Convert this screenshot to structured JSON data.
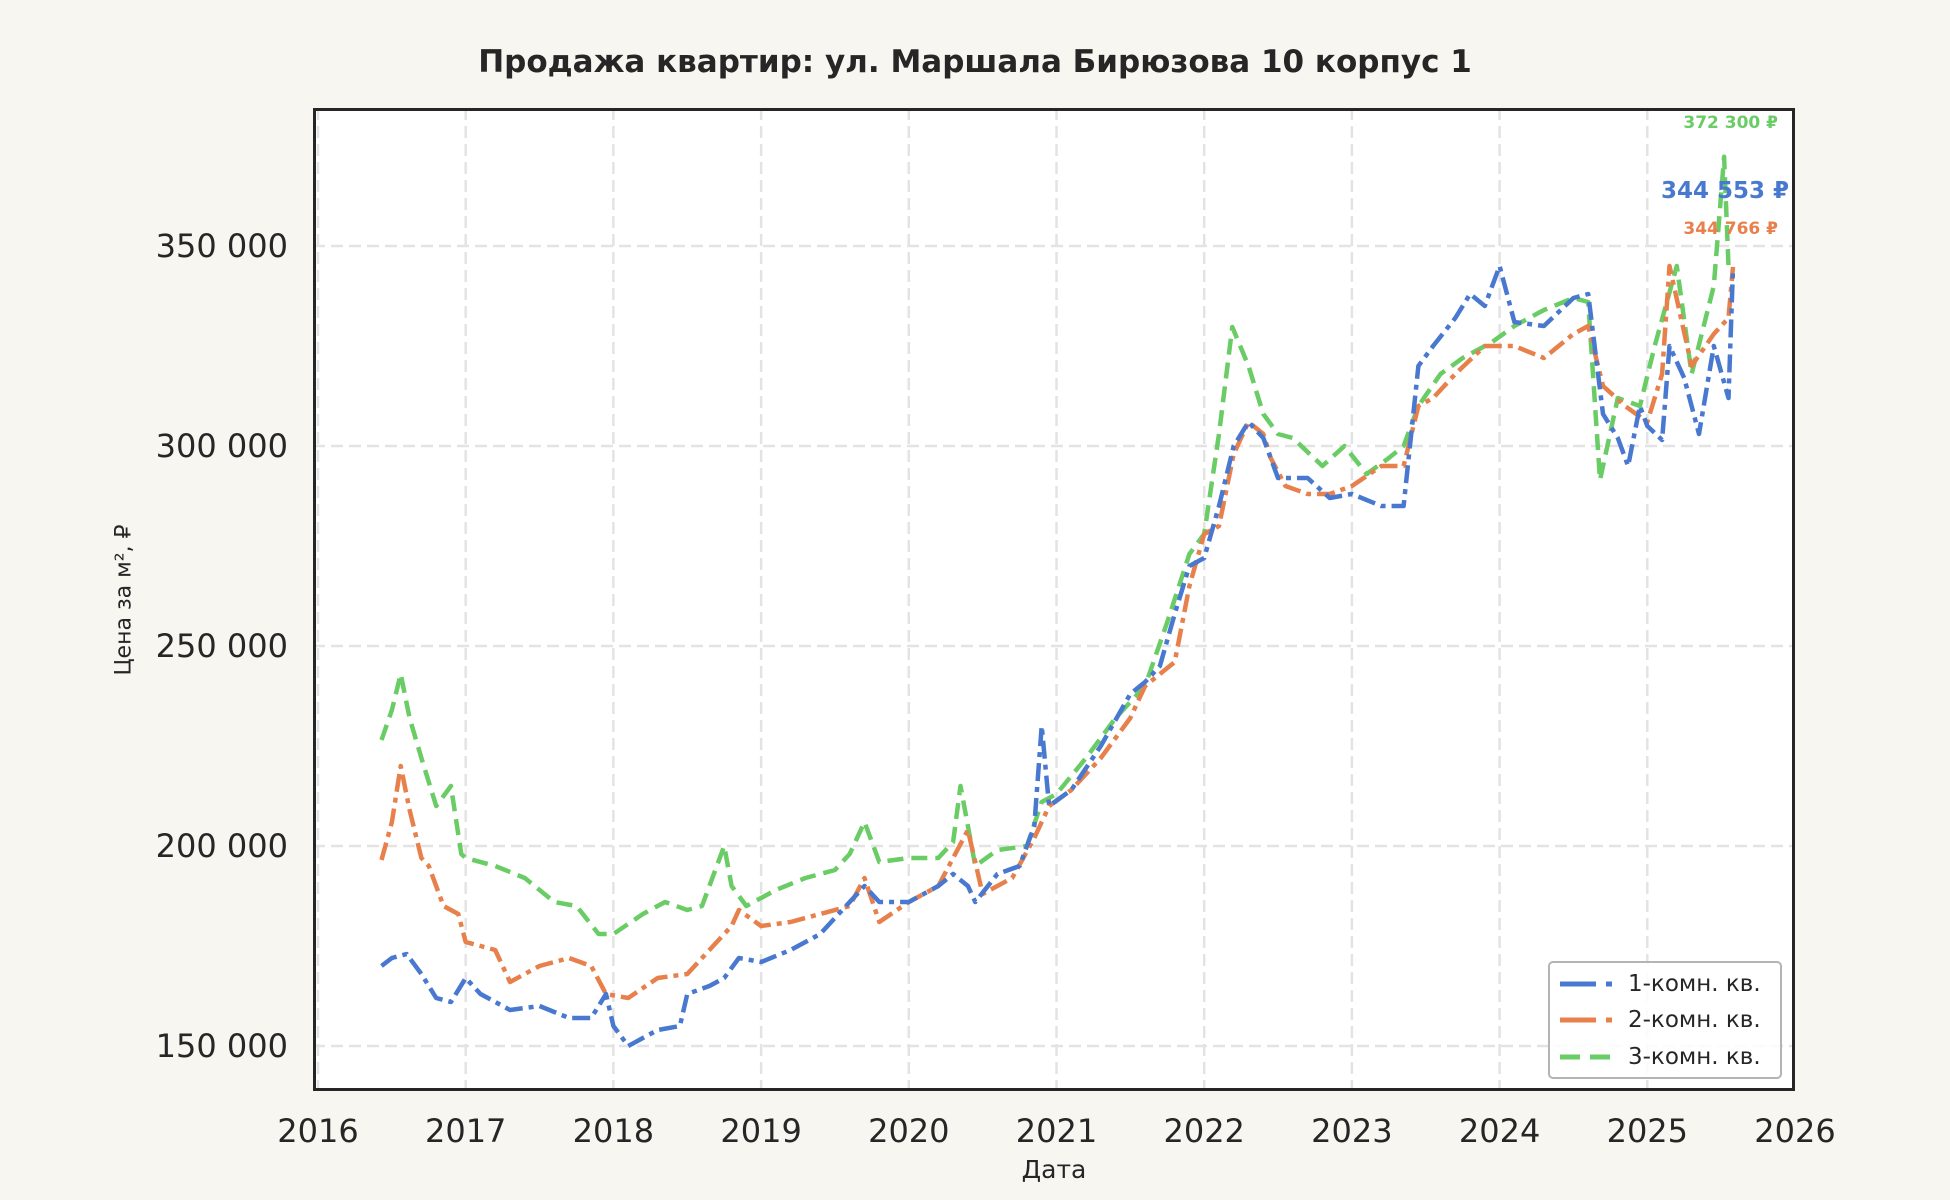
{
  "title": "Продажа квартир: ул. Маршала Бирюзова 10 корпус 1",
  "axes": {
    "xlabel": "Дата",
    "ylabel": "Цена за м², ₽",
    "xticks": [
      "2016",
      "2017",
      "2018",
      "2019",
      "2020",
      "2021",
      "2022",
      "2023",
      "2024",
      "2025",
      "2026"
    ],
    "yticks": [
      "150 000",
      "200 000",
      "250 000",
      "300 000",
      "350 000"
    ]
  },
  "legend": {
    "items": [
      {
        "label": "1-комн. кв.",
        "color": "#4878cf",
        "style": "dashdot"
      },
      {
        "label": "2-комн. кв.",
        "color": "#e8804c",
        "style": "dashdot"
      },
      {
        "label": "3-комн. кв.",
        "color": "#6acc65",
        "style": "dashed"
      }
    ]
  },
  "annotations": {
    "green": {
      "text": "372 300 ₽",
      "color": "#6acc65"
    },
    "blue": {
      "text": "344 553 ₽",
      "color": "#4878cf"
    },
    "orange": {
      "text": "344 766 ₽",
      "color": "#e8804c"
    }
  },
  "chart_data": {
    "type": "line",
    "title": "Продажа квартир: ул. Маршала Бирюзова 10 корпус 1",
    "xlabel": "Дата",
    "ylabel": "Цена за м², ₽",
    "xlim": [
      2016.0,
      2026.0
    ],
    "ylim": [
      138750,
      384500
    ],
    "grid": true,
    "legend_position": "lower right",
    "series": [
      {
        "name": "1-комн. кв.",
        "color": "#4878cf",
        "linestyle": "dashdot",
        "x": [
          2016.43,
          2016.5,
          2016.6,
          2016.7,
          2016.8,
          2016.9,
          2017.0,
          2017.1,
          2017.3,
          2017.5,
          2017.7,
          2017.85,
          2017.95,
          2018.0,
          2018.1,
          2018.2,
          2018.3,
          2018.45,
          2018.5,
          2018.65,
          2018.75,
          2018.85,
          2019.0,
          2019.2,
          2019.4,
          2019.5,
          2019.7,
          2019.8,
          2020.0,
          2020.2,
          2020.3,
          2020.4,
          2020.45,
          2020.6,
          2020.75,
          2020.85,
          2020.9,
          2020.95,
          2021.1,
          2021.3,
          2021.5,
          2021.6,
          2021.7,
          2021.8,
          2021.9,
          2022.0,
          2022.1,
          2022.2,
          2022.3,
          2022.4,
          2022.5,
          2022.7,
          2022.85,
          2023.0,
          2023.2,
          2023.35,
          2023.45,
          2023.55,
          2023.7,
          2023.8,
          2023.9,
          2024.0,
          2024.1,
          2024.3,
          2024.5,
          2024.6,
          2024.7,
          2024.8,
          2024.87,
          2024.95,
          2025.0,
          2025.1,
          2025.15,
          2025.25,
          2025.35,
          2025.45,
          2025.55,
          2025.58
        ],
        "values": [
          170000,
          172000,
          173000,
          168000,
          162000,
          161000,
          167000,
          163000,
          159000,
          160000,
          157000,
          157000,
          163000,
          155000,
          150000,
          152000,
          154000,
          155000,
          163000,
          165000,
          167000,
          172000,
          171000,
          174000,
          178000,
          182000,
          190000,
          186000,
          186000,
          190000,
          193000,
          190000,
          186000,
          193000,
          195000,
          205000,
          230000,
          210000,
          214000,
          225000,
          238000,
          241000,
          245000,
          258000,
          270000,
          272000,
          285000,
          300000,
          306000,
          302000,
          292000,
          292000,
          287000,
          288000,
          285000,
          285000,
          320000,
          325000,
          332000,
          338000,
          335000,
          345000,
          331000,
          330000,
          337000,
          338000,
          308000,
          302000,
          295000,
          310000,
          305000,
          301500,
          325000,
          317000,
          303000,
          325000,
          312000,
          344553
        ]
      },
      {
        "name": "2-комн. кв.",
        "color": "#e8804c",
        "linestyle": "dashdot",
        "x": [
          2016.43,
          2016.5,
          2016.56,
          2016.62,
          2016.7,
          2016.75,
          2016.85,
          2016.95,
          2017.0,
          2017.1,
          2017.2,
          2017.3,
          2017.5,
          2017.7,
          2017.85,
          2017.95,
          2018.1,
          2018.3,
          2018.5,
          2018.65,
          2018.8,
          2018.85,
          2019.0,
          2019.2,
          2019.4,
          2019.6,
          2019.7,
          2019.8,
          2020.0,
          2020.2,
          2020.3,
          2020.4,
          2020.5,
          2020.7,
          2020.85,
          2020.95,
          2021.1,
          2021.3,
          2021.5,
          2021.6,
          2021.7,
          2021.8,
          2021.9,
          2022.0,
          2022.1,
          2022.2,
          2022.3,
          2022.4,
          2022.45,
          2022.55,
          2022.7,
          2022.85,
          2023.0,
          2023.2,
          2023.35,
          2023.45,
          2023.55,
          2023.7,
          2023.9,
          2024.1,
          2024.3,
          2024.5,
          2024.6,
          2024.7,
          2024.85,
          2025.0,
          2025.1,
          2025.15,
          2025.3,
          2025.45,
          2025.55,
          2025.58
        ],
        "values": [
          196500,
          206000,
          220000,
          209000,
          197000,
          195000,
          185000,
          183000,
          176000,
          175000,
          174000,
          166000,
          170000,
          172000,
          170000,
          163000,
          162000,
          167000,
          168000,
          174000,
          180000,
          184000,
          180000,
          181000,
          183000,
          185000,
          192000,
          181000,
          186000,
          190000,
          197000,
          204000,
          188000,
          192000,
          202000,
          210000,
          214000,
          222000,
          232000,
          240000,
          243000,
          246000,
          265000,
          278000,
          280000,
          298000,
          306000,
          303000,
          297000,
          290000,
          288000,
          288000,
          290000,
          295000,
          295000,
          310000,
          312000,
          318000,
          325000,
          325000,
          322000,
          328000,
          330000,
          315000,
          310000,
          306000,
          318000,
          345000,
          320000,
          328000,
          332000,
          344766
        ]
      },
      {
        "name": "3-комн. кв.",
        "color": "#6acc65",
        "linestyle": "dashed",
        "x": [
          2016.43,
          2016.5,
          2016.56,
          2016.62,
          2016.7,
          2016.8,
          2016.9,
          2016.97,
          2017.0,
          2017.2,
          2017.4,
          2017.6,
          2017.75,
          2017.9,
          2018.0,
          2018.2,
          2018.35,
          2018.5,
          2018.6,
          2018.75,
          2018.8,
          2018.9,
          2019.1,
          2019.3,
          2019.5,
          2019.6,
          2019.7,
          2019.8,
          2020.0,
          2020.2,
          2020.3,
          2020.35,
          2020.45,
          2020.6,
          2020.8,
          2020.9,
          2021.0,
          2021.2,
          2021.4,
          2021.6,
          2021.75,
          2021.9,
          2022.0,
          2022.1,
          2022.19,
          2022.3,
          2022.4,
          2022.5,
          2022.6,
          2022.8,
          2022.95,
          2023.1,
          2023.25,
          2023.35,
          2023.45,
          2023.6,
          2023.75,
          2023.95,
          2024.1,
          2024.3,
          2024.5,
          2024.6,
          2024.68,
          2024.8,
          2024.95,
          2025.05,
          2025.2,
          2025.3,
          2025.45,
          2025.52,
          2025.55,
          2025.58
        ],
        "values": [
          226500,
          234000,
          243000,
          232000,
          222000,
          210000,
          215000,
          198000,
          197000,
          195000,
          192000,
          186000,
          185000,
          178000,
          178000,
          183000,
          186000,
          184000,
          185000,
          200000,
          190000,
          185000,
          189000,
          192000,
          194000,
          198000,
          206000,
          196000,
          197000,
          197000,
          201000,
          215000,
          195000,
          199000,
          200000,
          211000,
          213000,
          222000,
          232000,
          240000,
          256000,
          273000,
          278000,
          303000,
          329750,
          320000,
          308000,
          303000,
          302000,
          295000,
          300000,
          293000,
          297000,
          300000,
          310000,
          318000,
          322000,
          326000,
          330000,
          334000,
          337000,
          336000,
          291500,
          312000,
          310000,
          325000,
          345000,
          318000,
          340000,
          372300,
          345000,
          345000
        ]
      }
    ],
    "annotations": [
      {
        "text": "372 300 ₽",
        "series": "3-комн. кв."
      },
      {
        "text": "344 553 ₽",
        "series": "1-комн. кв."
      },
      {
        "text": "344 766 ₽",
        "series": "2-комн. кв."
      }
    ]
  }
}
